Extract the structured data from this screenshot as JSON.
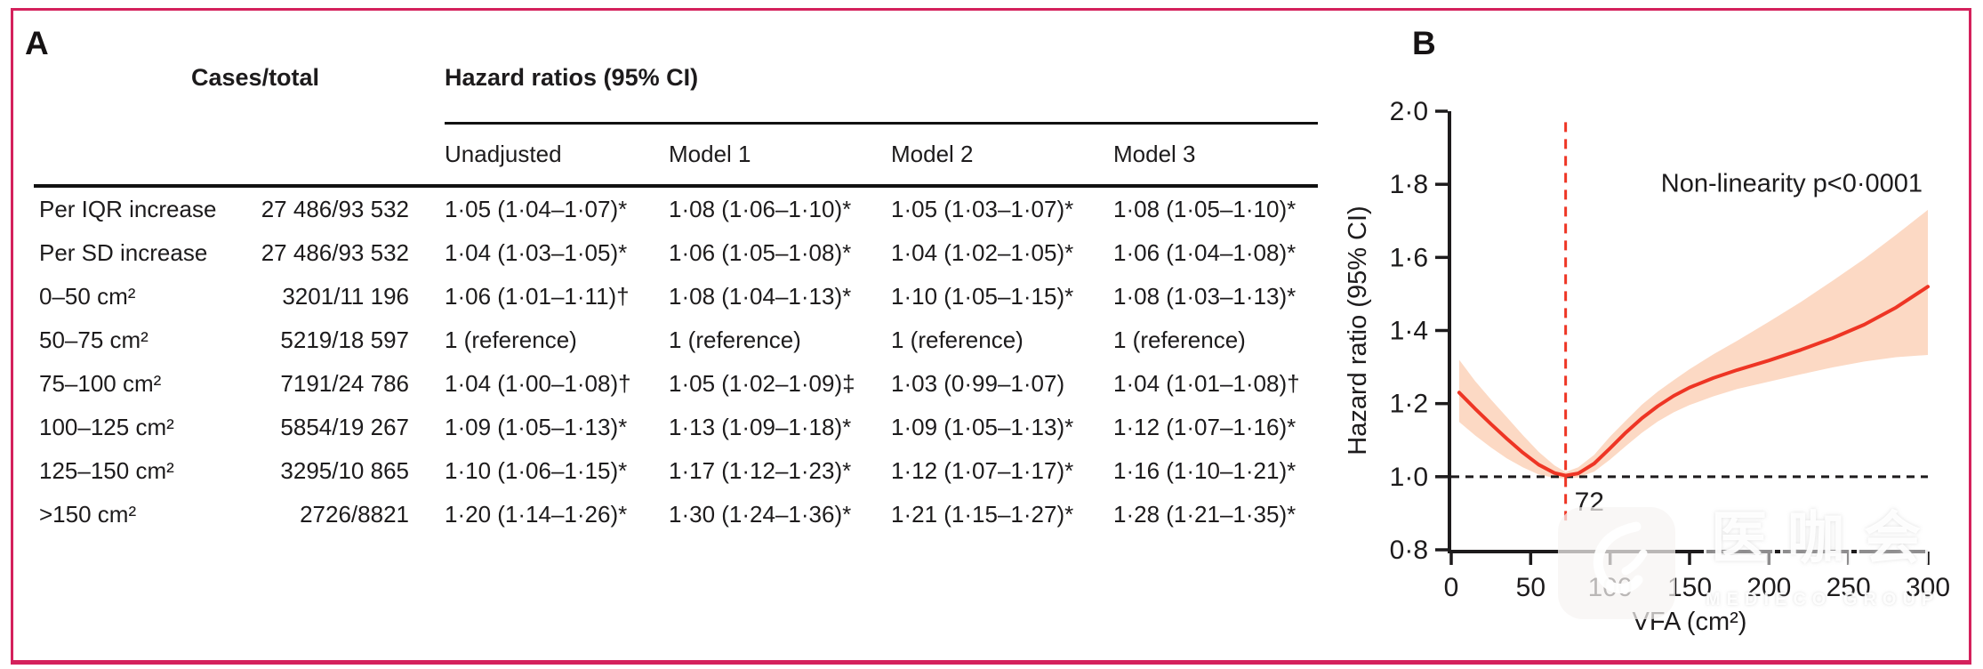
{
  "figure": {
    "panel_a": "A",
    "panel_b": "B",
    "border_color": "#d4215c"
  },
  "table": {
    "cases_header": "Cases/total",
    "group_header": "Hazard ratios (95% CI)",
    "model_headers": [
      "Unadjusted",
      "Model 1",
      "Model 2",
      "Model 3"
    ],
    "rows": [
      {
        "label": "Per IQR increase",
        "cases": "27 486/93 532",
        "values": [
          "1·05 (1·04–1·07)*",
          "1·08 (1·06–1·10)*",
          "1·05 (1·03–1·07)*",
          "1·08 (1·05–1·10)*"
        ]
      },
      {
        "label": "Per SD increase",
        "cases": "27 486/93 532",
        "values": [
          "1·04 (1·03–1·05)*",
          "1·06 (1·05–1·08)*",
          "1·04 (1·02–1·05)*",
          "1·06 (1·04–1·08)*"
        ]
      },
      {
        "label": "0–50 cm²",
        "cases": "3201/11 196",
        "values": [
          "1·06 (1·01–1·11)†",
          "1·08 (1·04–1·13)*",
          "1·10 (1·05–1·15)*",
          "1·08 (1·03–1·13)*"
        ]
      },
      {
        "label": "50–75 cm²",
        "cases": "5219/18 597",
        "values": [
          "1 (reference)",
          "1 (reference)",
          "1 (reference)",
          "1 (reference)"
        ]
      },
      {
        "label": "75–100 cm²",
        "cases": "7191/24 786",
        "values": [
          "1·04 (1·00–1·08)†",
          "1·05 (1·02–1·09)‡",
          "1·03 (0·99–1·07)",
          "1·04 (1·01–1·08)†"
        ]
      },
      {
        "label": "100–125 cm²",
        "cases": "5854/19 267",
        "values": [
          "1·09 (1·05–1·13)*",
          "1·13 (1·09–1·18)*",
          "1·09 (1·05–1·13)*",
          "1·12 (1·07–1·16)*"
        ]
      },
      {
        "label": "125–150 cm²",
        "cases": "3295/10 865",
        "values": [
          "1·10 (1·06–1·15)*",
          "1·17 (1·12–1·23)*",
          "1·12 (1·07–1·17)*",
          "1·16 (1·10–1·21)*"
        ]
      },
      {
        "label": ">150 cm²",
        "cases": "2726/8821",
        "values": [
          "1·20 (1·14–1·26)*",
          "1·30 (1·24–1·36)*",
          "1·21 (1·15–1·27)*",
          "1·28 (1·21–1·35)*"
        ]
      }
    ]
  },
  "chart_data": {
    "type": "line",
    "title": "",
    "xlabel": "VFA (cm²)",
    "ylabel": "Hazard ratio (95% CI)",
    "annotation": "Non-linearity p<0·0001",
    "xlim": [
      0,
      300
    ],
    "ylim": [
      0.8,
      2.0
    ],
    "grid": false,
    "xticks": {
      "values": [
        0,
        50,
        100,
        150,
        200,
        250,
        300
      ],
      "labels": [
        "0",
        "50",
        "100",
        "150",
        "200",
        "250",
        "300"
      ]
    },
    "yticks": {
      "values": [
        0.8,
        1.0,
        1.2,
        1.4,
        1.6,
        1.8,
        2.0
      ],
      "labels": [
        "0·8",
        "1·0",
        "1·2",
        "1·4",
        "1·6",
        "1·8",
        "2·0"
      ]
    },
    "reference_line_y": 1.0,
    "nadir_line": {
      "x": 72,
      "label": "72"
    },
    "line_color": "#ee3524",
    "band_color": "#fcd9c4",
    "series": [
      {
        "name": "Hazard ratio (95% CI)",
        "points": [
          {
            "x": 5,
            "y": 1.23,
            "lo": 1.15,
            "hi": 1.32
          },
          {
            "x": 15,
            "y": 1.186,
            "lo": 1.113,
            "hi": 1.262
          },
          {
            "x": 25,
            "y": 1.144,
            "lo": 1.08,
            "hi": 1.211
          },
          {
            "x": 35,
            "y": 1.104,
            "lo": 1.05,
            "hi": 1.163
          },
          {
            "x": 45,
            "y": 1.066,
            "lo": 1.026,
            "hi": 1.114
          },
          {
            "x": 55,
            "y": 1.033,
            "lo": 1.006,
            "hi": 1.068
          },
          {
            "x": 65,
            "y": 1.01,
            "lo": 0.997,
            "hi": 1.031
          },
          {
            "x": 72,
            "y": 1.003,
            "lo": 0.995,
            "hi": 1.013
          },
          {
            "x": 80,
            "y": 1.009,
            "lo": 0.998,
            "hi": 1.026
          },
          {
            "x": 90,
            "y": 1.036,
            "lo": 1.014,
            "hi": 1.06
          },
          {
            "x": 100,
            "y": 1.078,
            "lo": 1.047,
            "hi": 1.11
          },
          {
            "x": 110,
            "y": 1.121,
            "lo": 1.084,
            "hi": 1.154
          },
          {
            "x": 120,
            "y": 1.16,
            "lo": 1.12,
            "hi": 1.197
          },
          {
            "x": 130,
            "y": 1.193,
            "lo": 1.151,
            "hi": 1.233
          },
          {
            "x": 140,
            "y": 1.221,
            "lo": 1.176,
            "hi": 1.264
          },
          {
            "x": 150,
            "y": 1.244,
            "lo": 1.196,
            "hi": 1.294
          },
          {
            "x": 165,
            "y": 1.27,
            "lo": 1.22,
            "hi": 1.335
          },
          {
            "x": 180,
            "y": 1.292,
            "lo": 1.24,
            "hi": 1.372
          },
          {
            "x": 200,
            "y": 1.318,
            "lo": 1.26,
            "hi": 1.424
          },
          {
            "x": 220,
            "y": 1.347,
            "lo": 1.28,
            "hi": 1.478
          },
          {
            "x": 240,
            "y": 1.379,
            "lo": 1.299,
            "hi": 1.536
          },
          {
            "x": 260,
            "y": 1.416,
            "lo": 1.315,
            "hi": 1.596
          },
          {
            "x": 280,
            "y": 1.463,
            "lo": 1.327,
            "hi": 1.662
          },
          {
            "x": 300,
            "y": 1.52,
            "lo": 1.333,
            "hi": 1.73
          }
        ]
      }
    ]
  },
  "watermark": {
    "cjk_chars": [
      "医",
      "咖",
      "会"
    ],
    "latin": "MEDIECO GROUP"
  }
}
